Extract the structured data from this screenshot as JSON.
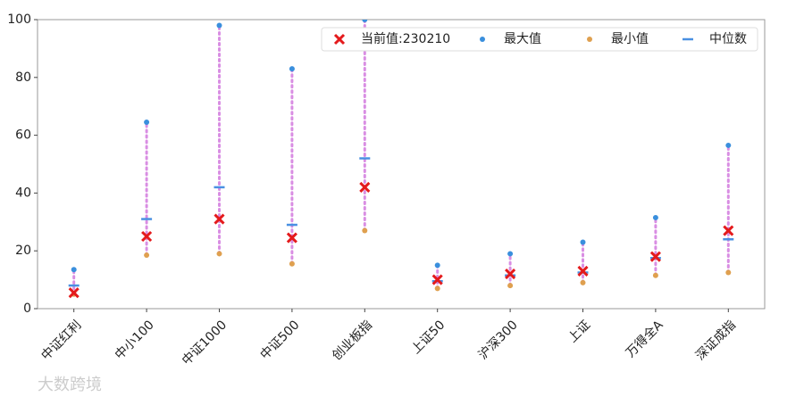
{
  "chart_data": {
    "type": "range_dot",
    "categories": [
      "中证红利",
      "中小100",
      "中证1000",
      "中证500",
      "创业板指",
      "上证50",
      "沪深300",
      "上证",
      "万得全A",
      "深证成指"
    ],
    "series": [
      {
        "name": "当前值:230210",
        "color": "#e41a1c",
        "values": [
          5.5,
          25,
          31,
          24.5,
          42,
          10,
          12,
          13,
          18,
          27
        ]
      },
      {
        "name": "最大值",
        "color": "#3a8fdd",
        "values": [
          13.5,
          64.5,
          98,
          83,
          100,
          15,
          19,
          23,
          31.5,
          56.5
        ]
      },
      {
        "name": "最小值",
        "color": "#dfa04f",
        "values": [
          5,
          18.5,
          19,
          15.5,
          27,
          7,
          8,
          9,
          11.5,
          12.5
        ]
      },
      {
        "name": "中位数",
        "color": "#4a90e2",
        "values": [
          8,
          31,
          42,
          29,
          52,
          9.5,
          11.5,
          12.5,
          17.5,
          24
        ]
      }
    ],
    "range_color": "#d98ee3",
    "ylim": [
      0,
      100
    ],
    "yticks": [
      0,
      20,
      40,
      60,
      80,
      100
    ],
    "legend": "upper right",
    "watermark": "大数跨境"
  }
}
